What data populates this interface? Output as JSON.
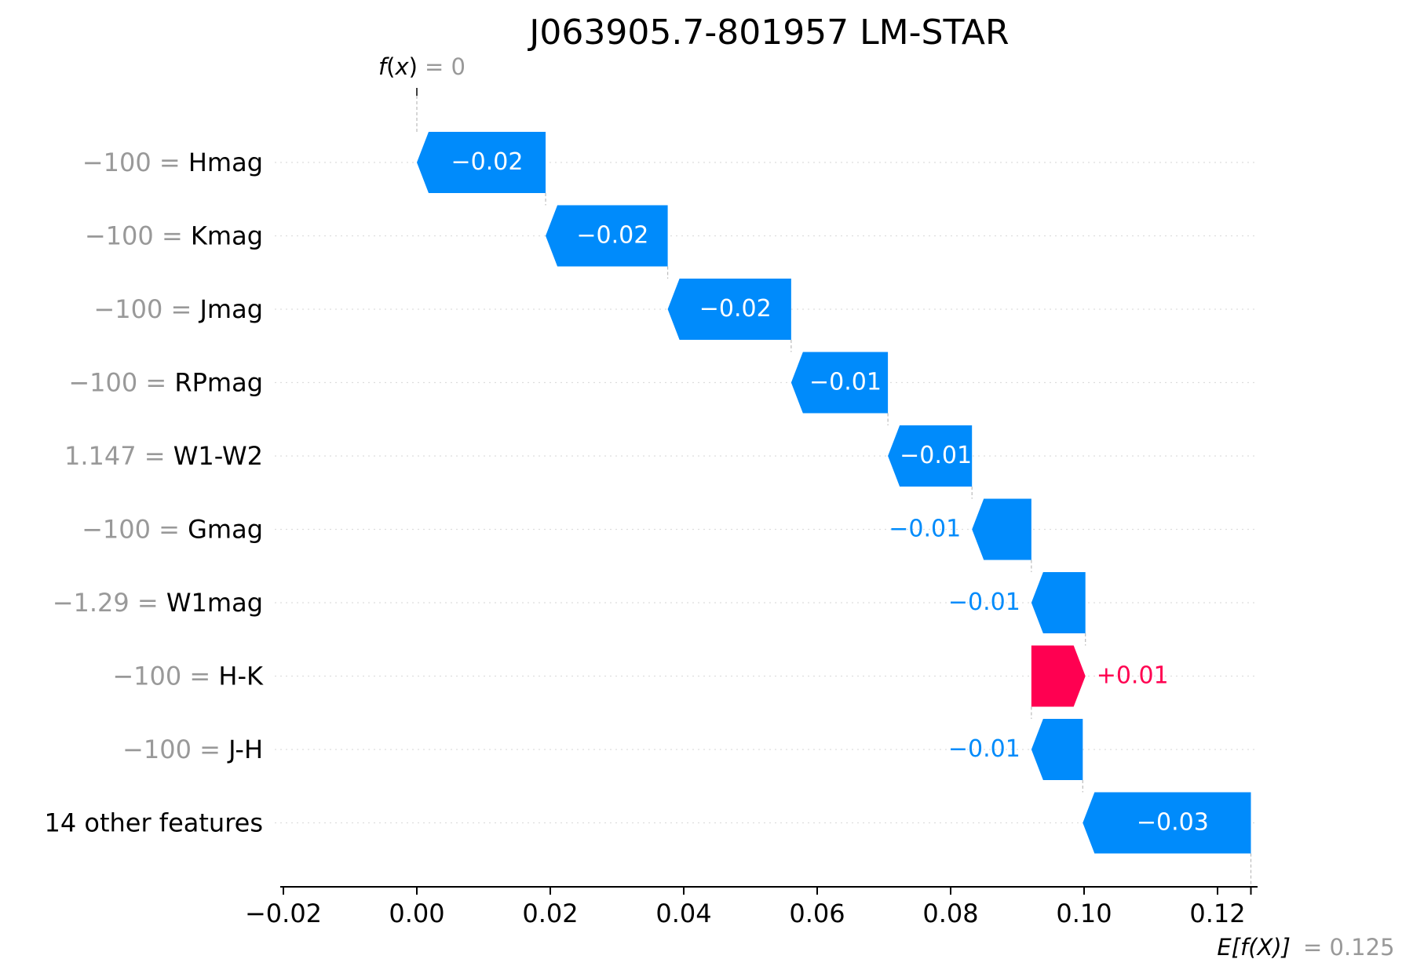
{
  "chart_data": {
    "type": "waterfall",
    "title": "J063905.7-801957 LM-STAR",
    "top_label": {
      "func": "f",
      "arg": "x",
      "eq": "= 0"
    },
    "bottom_label": {
      "func": "E[f(X)]",
      "eq": "= 0.125"
    },
    "base_value": 0.125,
    "final_value": 0,
    "xlim": [
      -0.022,
      0.1275
    ],
    "xticks": [
      -0.02,
      0.0,
      0.02,
      0.04,
      0.06,
      0.08,
      0.1,
      0.12
    ],
    "xtick_labels": [
      "−0.02",
      "0.00",
      "0.02",
      "0.04",
      "0.06",
      "0.08",
      "0.10",
      "0.12"
    ],
    "colors": {
      "negative": "#008bfb",
      "positive": "#ff0051",
      "feature_value": "#999999",
      "feature_name": "#000000"
    },
    "features": [
      {
        "value": "−100 =",
        "name": "Hmag",
        "start": 0.0193,
        "end": 0.0,
        "label": "−0.02"
      },
      {
        "value": "−100 =",
        "name": "Kmag",
        "start": 0.0376,
        "end": 0.0193,
        "label": "−0.02"
      },
      {
        "value": "−100 =",
        "name": "Jmag",
        "start": 0.0561,
        "end": 0.0376,
        "label": "−0.02"
      },
      {
        "value": "−100 =",
        "name": "RPmag",
        "start": 0.0706,
        "end": 0.0561,
        "label": "−0.01"
      },
      {
        "value": "1.147 =",
        "name": "W1-W2",
        "start": 0.0832,
        "end": 0.0706,
        "label": "−0.01"
      },
      {
        "value": "−100 =",
        "name": "Gmag",
        "start": 0.0921,
        "end": 0.0832,
        "label": "−0.01"
      },
      {
        "value": "−1.29 =",
        "name": "W1mag",
        "start": 0.1002,
        "end": 0.0921,
        "label": "−0.01"
      },
      {
        "value": "−100 =",
        "name": "H-K",
        "start": 0.0921,
        "end": 0.1002,
        "label": "+0.01"
      },
      {
        "value": "−100 =",
        "name": "J-H",
        "start": 0.0998,
        "end": 0.0921,
        "label": "−0.01"
      },
      {
        "value": "",
        "name": "14 other features",
        "start": 0.125,
        "end": 0.0998,
        "label": "−0.03"
      }
    ]
  }
}
